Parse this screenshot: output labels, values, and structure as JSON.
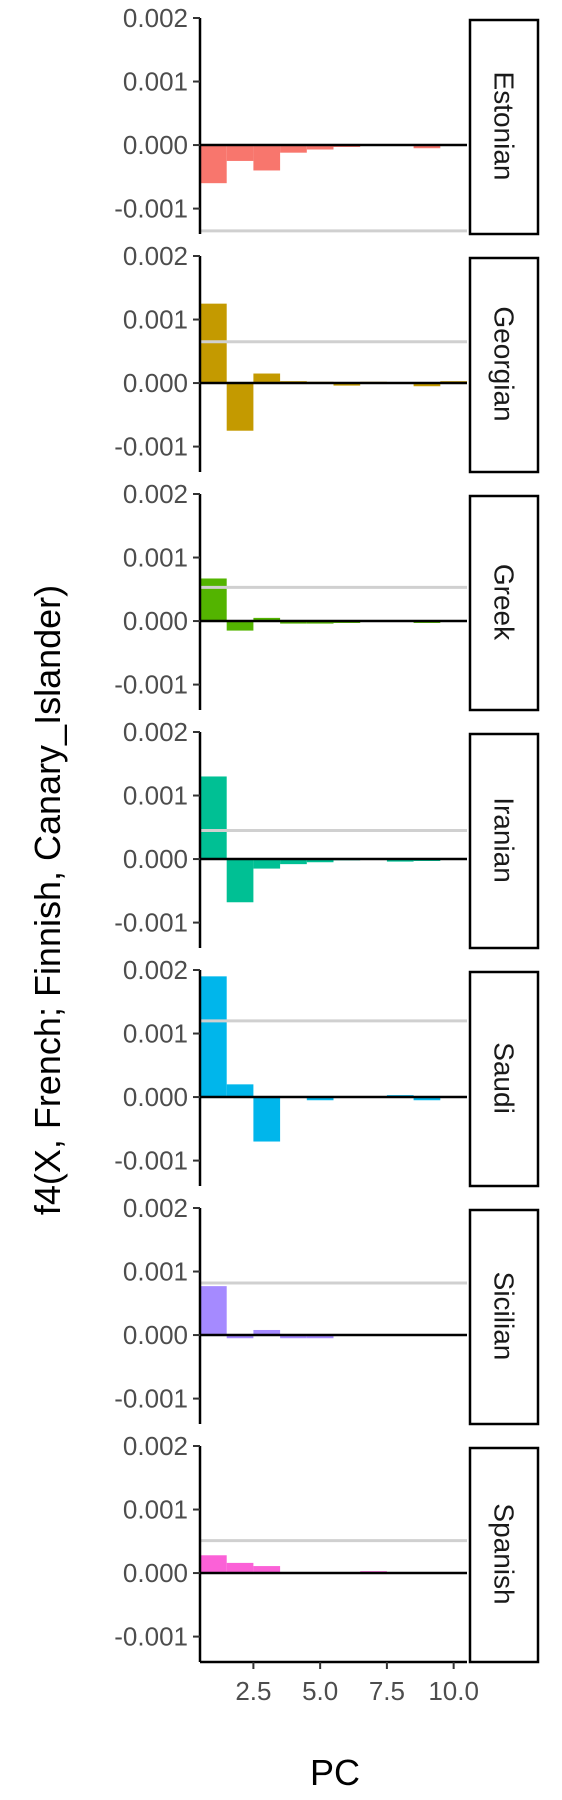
{
  "chart_data": {
    "type": "bar",
    "layout": "faceted small multiples, vertical stack",
    "ylabel": "f4(X, French; Finnish, Canary_Islander)",
    "xlabel": "PC",
    "x_ticks": [
      "2.5",
      "5.0",
      "7.5",
      "10.0"
    ],
    "y_ticks": [
      "0.002",
      "0.001",
      "0.000",
      "-0.001"
    ],
    "ylim": [
      -0.0014,
      0.002
    ],
    "xlim": [
      0.5,
      10.5
    ],
    "x": [
      1,
      2,
      3,
      4,
      5,
      6,
      7,
      8,
      9,
      10
    ],
    "reference_line": "gray horizontal line per panel",
    "legend": "none",
    "grid": false,
    "panels": [
      {
        "name": "Estonian",
        "color": "#F8766D",
        "reference": -0.00135,
        "values": [
          -0.0006,
          -0.00025,
          -0.0004,
          -0.00012,
          -7e-05,
          -3e-05,
          -1e-05,
          -1e-05,
          -5e-05,
          -1e-05
        ]
      },
      {
        "name": "Georgian",
        "color": "#C49A00",
        "reference": 0.00065,
        "values": [
          0.00125,
          -0.00075,
          0.00015,
          3e-05,
          2e-05,
          -4e-05,
          2e-05,
          1e-05,
          -5e-05,
          3e-05
        ]
      },
      {
        "name": "Greek",
        "color": "#53B400",
        "reference": 0.00053,
        "values": [
          0.00067,
          -0.00015,
          5e-05,
          -4e-05,
          -4e-05,
          -3e-05,
          -1e-05,
          1e-05,
          -3e-05,
          1e-05
        ]
      },
      {
        "name": "Iranian",
        "color": "#00C094",
        "reference": 0.00045,
        "values": [
          0.0013,
          -0.00068,
          -0.00015,
          -8e-05,
          -5e-05,
          -2e-05,
          -1e-05,
          -4e-05,
          -3e-05,
          1e-05
        ]
      },
      {
        "name": "Saudi",
        "color": "#00B6EB",
        "reference": 0.0012,
        "values": [
          0.0019,
          0.0002,
          -0.0007,
          1e-05,
          -5e-05,
          1e-05,
          1e-05,
          3e-05,
          -5e-05,
          1e-05
        ]
      },
      {
        "name": "Sicilian",
        "color": "#A58AFF",
        "reference": 0.00082,
        "values": [
          0.00077,
          -5e-05,
          8e-05,
          -5e-05,
          -5e-05,
          1e-05,
          1e-05,
          1e-05,
          -1e-05,
          1e-05
        ]
      },
      {
        "name": "Spanish",
        "color": "#FB61D7",
        "reference": 0.00051,
        "values": [
          0.00028,
          0.00016,
          0.00011,
          1e-05,
          1e-05,
          1e-05,
          3e-05,
          1e-05,
          1e-05,
          1e-05
        ]
      }
    ]
  }
}
